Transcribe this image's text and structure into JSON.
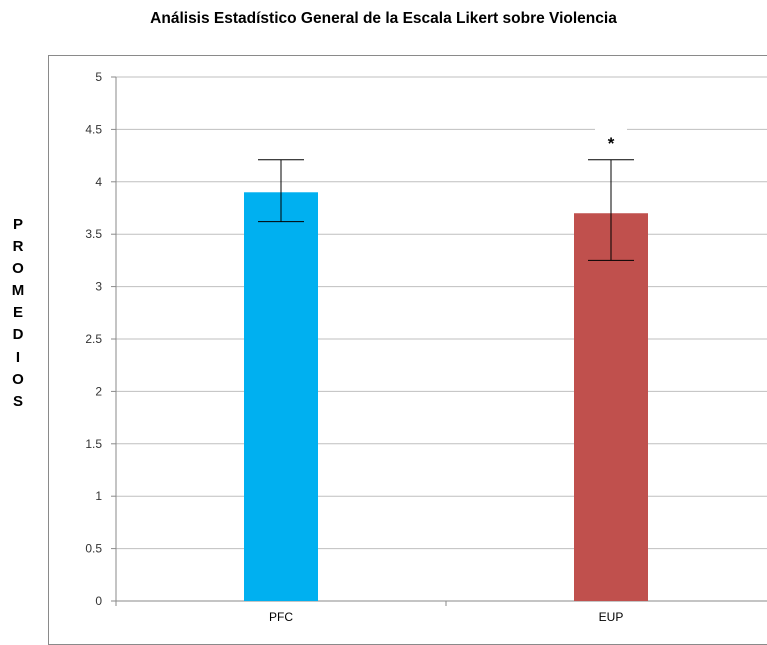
{
  "chart_data": {
    "type": "bar",
    "title": "Análisis Estadístico General de la Escala Likert sobre Violencia",
    "xlabel": "",
    "ylabel": "PROMEDIOS",
    "categories": [
      "PFC",
      "EUP"
    ],
    "values": [
      3.9,
      3.7
    ],
    "error_bars": [
      {
        "low": 3.62,
        "high": 4.21
      },
      {
        "low": 3.25,
        "high": 4.21
      }
    ],
    "colors": [
      "#00b0f0",
      "#c0504d"
    ],
    "annotations": [
      {
        "category": "EUP",
        "text": "*"
      }
    ],
    "ylim": [
      0,
      5
    ],
    "yticks": [
      "0",
      "0.5",
      "1",
      "1.5",
      "2",
      "2.5",
      "3",
      "3.5",
      "4",
      "4.5",
      "5"
    ],
    "grid": true,
    "legend": "none"
  }
}
